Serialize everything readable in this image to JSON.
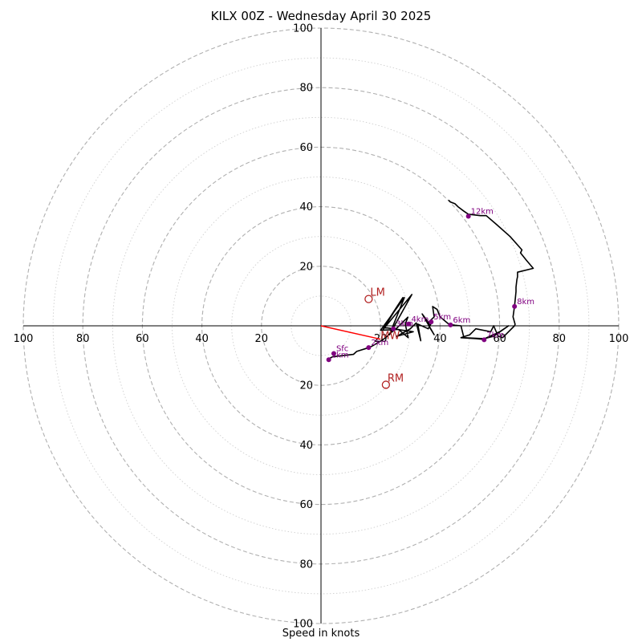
{
  "chart_data": {
    "type": "hodograph",
    "title": "KILX 00Z - Wednesday April 30 2025",
    "xlabel": "Speed in knots",
    "range": [
      -100,
      100
    ],
    "ring_step": 10,
    "tick_labels": [
      "100",
      "80",
      "60",
      "40",
      "20",
      "20",
      "40",
      "60",
      "80",
      "100"
    ],
    "tick_values": [
      -100,
      -80,
      -60,
      -40,
      -20,
      20,
      40,
      60,
      80,
      100
    ],
    "grid": true,
    "trace_color": "#000000",
    "trace": [
      [
        2.3,
        -11.2
      ],
      [
        3.9,
        -10.4
      ],
      [
        10.9,
        -9.6
      ],
      [
        12.0,
        -8.6
      ],
      [
        15.5,
        -7.5
      ],
      [
        17.2,
        -6.8
      ],
      [
        19.1,
        -5.7
      ],
      [
        21.0,
        -4.5
      ],
      [
        22.0,
        -3.7
      ],
      [
        23.5,
        -2.3
      ],
      [
        25.0,
        -1.2
      ],
      [
        27.5,
        1.3
      ],
      [
        29.2,
        2.9
      ],
      [
        28.3,
        0.6
      ],
      [
        29.3,
        -4.0
      ],
      [
        26.0,
        -1.2
      ],
      [
        20.0,
        -1.5
      ],
      [
        28.0,
        9.5
      ],
      [
        23.0,
        -3.0
      ],
      [
        30.5,
        10.5
      ],
      [
        20.8,
        -1.3
      ],
      [
        27.5,
        9.5
      ],
      [
        21.0,
        -0.5
      ],
      [
        31.0,
        -2.0
      ],
      [
        25.5,
        -3.5
      ],
      [
        30.0,
        -1.0
      ],
      [
        32.0,
        1.0
      ],
      [
        33.5,
        -5.0
      ],
      [
        32.5,
        0.6
      ],
      [
        36.0,
        -1.0
      ],
      [
        37.0,
        0.8
      ],
      [
        36.2,
        1.0
      ],
      [
        34.0,
        4.0
      ],
      [
        38.0,
        -3.0
      ],
      [
        36.5,
        -0.5
      ],
      [
        36.2,
        1.3
      ],
      [
        38.0,
        3.0
      ],
      [
        37.5,
        6.5
      ],
      [
        39.0,
        5.5
      ],
      [
        40.0,
        3.0
      ],
      [
        43.0,
        0.5
      ],
      [
        45.0,
        0.2
      ],
      [
        47.0,
        0.0
      ],
      [
        48.0,
        -4.0
      ],
      [
        55.0,
        -4.3
      ],
      [
        60.0,
        -2.0
      ],
      [
        63.0,
        0.0
      ],
      [
        58.0,
        -3.5
      ],
      [
        54.0,
        -4.5
      ],
      [
        52.0,
        -4.3
      ],
      [
        47.0,
        -4.0
      ],
      [
        50.0,
        -3.0
      ],
      [
        52.0,
        -1.0
      ],
      [
        57.0,
        -2.0
      ],
      [
        58.0,
        0.0
      ],
      [
        59.5,
        -3.5
      ],
      [
        61.0,
        -4.0
      ],
      [
        63.0,
        -2.0
      ],
      [
        65.0,
        0.0
      ],
      [
        65.2,
        0.5
      ],
      [
        64.5,
        3.0
      ],
      [
        65.0,
        6.5
      ],
      [
        65.2,
        8.5
      ],
      [
        65.5,
        11.5
      ],
      [
        65.5,
        13.0
      ],
      [
        65.8,
        15.5
      ],
      [
        66.0,
        16.5
      ],
      [
        66.0,
        18.0
      ],
      [
        71.3,
        19.3
      ],
      [
        69.0,
        22.0
      ],
      [
        67.0,
        24.5
      ],
      [
        67.5,
        25.5
      ],
      [
        63.5,
        30.0
      ],
      [
        59.0,
        34.0
      ],
      [
        55.5,
        37.0
      ],
      [
        53.5,
        37.0
      ],
      [
        49.5,
        37.5
      ],
      [
        48.0,
        38.5
      ],
      [
        46.0,
        40.0
      ],
      [
        45.0,
        41.0
      ],
      [
        43.5,
        41.6
      ],
      [
        42.8,
        42.2
      ]
    ],
    "height_markers": [
      {
        "label": "Sfc",
        "u": 4.3,
        "v": -9.3
      },
      {
        "label": "1km",
        "u": 2.6,
        "v": -11.4
      },
      {
        "label": "2km",
        "u": 16.0,
        "v": -7.3
      },
      {
        "label": "3km",
        "u": 24.3,
        "v": -1.0
      },
      {
        "label": "4km",
        "u": 29.5,
        "v": 0.6
      },
      {
        "label": "5km",
        "u": 37.0,
        "v": 1.3
      },
      {
        "label": "6km",
        "u": 43.5,
        "v": 0.3
      },
      {
        "label": "7km",
        "u": 54.8,
        "v": -4.7
      },
      {
        "label": "8km",
        "u": 65.0,
        "v": 6.5
      },
      {
        "label": "12km",
        "u": 49.5,
        "v": 36.8
      }
    ],
    "marker_color": "#800080",
    "storm_motion": [
      {
        "label": "LM",
        "u": 16.0,
        "v": 9.0
      },
      {
        "label": "RM",
        "u": 21.8,
        "v": -19.8
      },
      {
        "label": "MW",
        "u": 20.0,
        "v": -4.5
      }
    ],
    "storm_color": "#b22222",
    "shear_vector": {
      "from": [
        0,
        0
      ],
      "to": [
        20.0,
        -4.5
      ],
      "color": "#ff0000"
    }
  }
}
